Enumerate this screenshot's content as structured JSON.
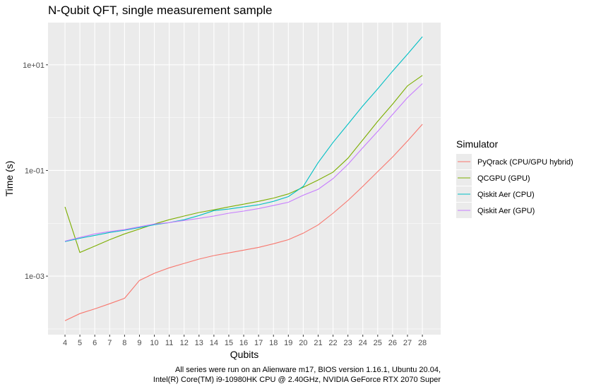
{
  "chart_data": {
    "type": "line",
    "title": "N-Qubit QFT, single measurement sample",
    "x_label": "Qubits",
    "y_label": "Time (s)",
    "caption": [
      "All series were run on an Alienware m17, BIOS version 1.16.1, Ubuntu 20.04,",
      "Intel(R) Core(TM) i9-10980HK CPU @ 2.40GHz, NVIDIA GeForce RTX 2070 Super"
    ],
    "legend_title": "Simulator",
    "legend_position": "right",
    "log_y": true,
    "grid": true,
    "x": [
      4,
      5,
      6,
      7,
      8,
      9,
      10,
      11,
      12,
      13,
      14,
      15,
      16,
      17,
      18,
      19,
      20,
      21,
      22,
      23,
      24,
      25,
      26,
      27,
      28
    ],
    "xlim": [
      2.86,
      29.23
    ],
    "xticks": [
      4,
      5,
      6,
      7,
      8,
      9,
      10,
      11,
      12,
      13,
      14,
      15,
      16,
      17,
      18,
      19,
      20,
      21,
      22,
      23,
      24,
      25,
      26,
      27,
      28
    ],
    "ylim": [
      7.8e-05,
      63
    ],
    "yticks": [
      {
        "value": 10,
        "label": "1e+01"
      },
      {
        "value": 0.1,
        "label": "1e-01"
      },
      {
        "value": 0.001,
        "label": "1e-03"
      }
    ],
    "y_minor_ticks": [
      1,
      0.01,
      0.0001
    ],
    "series": [
      {
        "name": "PyQrack (CPU/GPU hybrid)",
        "color": "#F8766D",
        "values": [
          0.000143,
          0.000195,
          0.00024,
          0.0003,
          0.00038,
          0.00083,
          0.00113,
          0.00144,
          0.00174,
          0.0021,
          0.00245,
          0.00275,
          0.0031,
          0.0035,
          0.0041,
          0.0049,
          0.0065,
          0.0093,
          0.0155,
          0.027,
          0.05,
          0.095,
          0.18,
          0.36,
          0.75
        ]
      },
      {
        "name": "QCGPU (GPU)",
        "color": "#7CAE00",
        "values": [
          0.0204,
          0.0028,
          0.0037,
          0.0049,
          0.0063,
          0.0078,
          0.0097,
          0.0117,
          0.0137,
          0.016,
          0.018,
          0.0204,
          0.023,
          0.026,
          0.03,
          0.036,
          0.048,
          0.066,
          0.093,
          0.17,
          0.38,
          0.85,
          1.8,
          4.0,
          6.3
        ]
      },
      {
        "name": "Qiskit Aer (CPU)",
        "color": "#00BFC4",
        "values": [
          0.0045,
          0.0052,
          0.0059,
          0.0067,
          0.0074,
          0.0083,
          0.0094,
          0.0103,
          0.0117,
          0.014,
          0.0174,
          0.0186,
          0.0204,
          0.0224,
          0.026,
          0.032,
          0.05,
          0.141,
          0.34,
          0.75,
          1.67,
          3.5,
          7.6,
          15.9,
          34
        ]
      },
      {
        "name": "Qiskit Aer (GPU)",
        "color": "#C77CFF",
        "values": [
          0.0046,
          0.0054,
          0.0063,
          0.007,
          0.0076,
          0.0086,
          0.0097,
          0.0103,
          0.0113,
          0.0124,
          0.0137,
          0.0155,
          0.017,
          0.019,
          0.0217,
          0.025,
          0.034,
          0.044,
          0.07,
          0.13,
          0.27,
          0.55,
          1.15,
          2.4,
          4.4
        ]
      }
    ]
  }
}
